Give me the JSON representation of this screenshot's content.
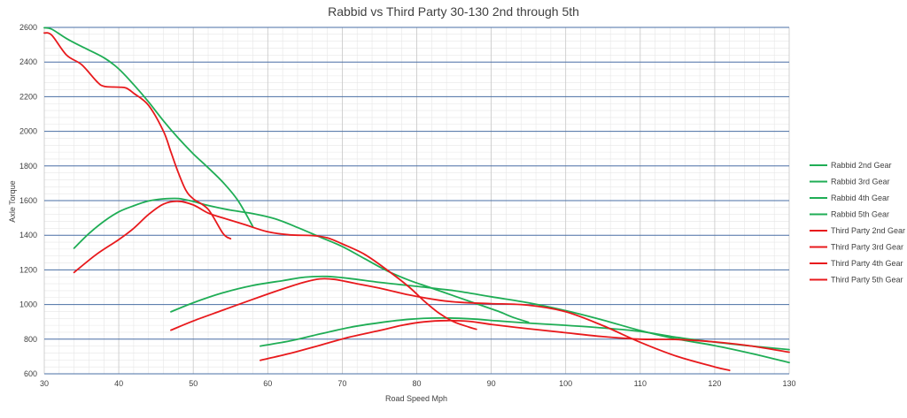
{
  "chart_data": {
    "type": "line",
    "title": "Rabbid vs Third Party 30-130 2nd through 5th",
    "xlabel": "Road Speed Mph",
    "ylabel": "Axle Torque",
    "xlim": [
      30,
      130
    ],
    "ylim": [
      600,
      2600
    ],
    "x_ticks": [
      30,
      40,
      50,
      60,
      70,
      80,
      90,
      100,
      110,
      120,
      130
    ],
    "y_ticks": [
      600,
      800,
      1000,
      1200,
      1400,
      1600,
      1800,
      2000,
      2200,
      2400,
      2600
    ],
    "major_grid": true,
    "minor_grid": true,
    "legend_position": "right",
    "series": [
      {
        "name": "Rabbid 2nd Gear",
        "color": "#1fad55",
        "points": [
          [
            30,
            2598
          ],
          [
            31,
            2590
          ],
          [
            33,
            2535
          ],
          [
            35,
            2490
          ],
          [
            38,
            2425
          ],
          [
            40,
            2360
          ],
          [
            42,
            2270
          ],
          [
            44,
            2170
          ],
          [
            46,
            2060
          ],
          [
            48,
            1960
          ],
          [
            50,
            1870
          ],
          [
            52,
            1790
          ],
          [
            54,
            1705
          ],
          [
            56,
            1600
          ],
          [
            58,
            1450
          ]
        ]
      },
      {
        "name": "Rabbid 3rd Gear",
        "color": "#1fad55",
        "points": [
          [
            34,
            1325
          ],
          [
            36,
            1410
          ],
          [
            38,
            1480
          ],
          [
            40,
            1535
          ],
          [
            42,
            1570
          ],
          [
            44,
            1598
          ],
          [
            46,
            1610
          ],
          [
            48,
            1612
          ],
          [
            50,
            1595
          ],
          [
            52,
            1572
          ],
          [
            55,
            1545
          ],
          [
            58,
            1525
          ],
          [
            61,
            1495
          ],
          [
            64,
            1445
          ],
          [
            67,
            1390
          ],
          [
            70,
            1335
          ],
          [
            73,
            1265
          ],
          [
            76,
            1195
          ],
          [
            79,
            1140
          ],
          [
            82,
            1095
          ],
          [
            85,
            1050
          ],
          [
            88,
            1005
          ],
          [
            91,
            960
          ],
          [
            93,
            925
          ],
          [
            95,
            898
          ]
        ]
      },
      {
        "name": "Rabbid 4th Gear",
        "color": "#1fad55",
        "points": [
          [
            47,
            958
          ],
          [
            50,
            1010
          ],
          [
            54,
            1068
          ],
          [
            58,
            1110
          ],
          [
            62,
            1138
          ],
          [
            65,
            1158
          ],
          [
            68,
            1162
          ],
          [
            71,
            1150
          ],
          [
            75,
            1128
          ],
          [
            80,
            1105
          ],
          [
            85,
            1080
          ],
          [
            90,
            1045
          ],
          [
            95,
            1010
          ],
          [
            100,
            965
          ],
          [
            105,
            910
          ],
          [
            110,
            850
          ],
          [
            115,
            800
          ],
          [
            120,
            763
          ],
          [
            125,
            717
          ],
          [
            130,
            665
          ]
        ]
      },
      {
        "name": "Rabbid 5th Gear",
        "color": "#1fad55",
        "points": [
          [
            59,
            760
          ],
          [
            63,
            790
          ],
          [
            67,
            830
          ],
          [
            71,
            868
          ],
          [
            75,
            895
          ],
          [
            79,
            915
          ],
          [
            83,
            922
          ],
          [
            87,
            918
          ],
          [
            91,
            905
          ],
          [
            95,
            893
          ],
          [
            100,
            880
          ],
          [
            105,
            865
          ],
          [
            110,
            845
          ],
          [
            115,
            810
          ],
          [
            120,
            783
          ],
          [
            125,
            760
          ],
          [
            130,
            740
          ]
        ]
      },
      {
        "name": "Third Party 2nd Gear",
        "color": "#e8191c",
        "points": [
          [
            30,
            2568
          ],
          [
            31,
            2555
          ],
          [
            33,
            2440
          ],
          [
            35,
            2385
          ],
          [
            37,
            2290
          ],
          [
            38,
            2260
          ],
          [
            40,
            2255
          ],
          [
            41,
            2250
          ],
          [
            42,
            2220
          ],
          [
            44,
            2150
          ],
          [
            46,
            2000
          ],
          [
            47,
            1880
          ],
          [
            48,
            1760
          ],
          [
            49,
            1660
          ],
          [
            50,
            1610
          ],
          [
            52,
            1550
          ],
          [
            54,
            1410
          ],
          [
            55,
            1380
          ]
        ]
      },
      {
        "name": "Third Party 3rd Gear",
        "color": "#e8191c",
        "points": [
          [
            34,
            1185
          ],
          [
            37,
            1290
          ],
          [
            40,
            1375
          ],
          [
            42,
            1440
          ],
          [
            44,
            1520
          ],
          [
            46,
            1580
          ],
          [
            48,
            1596
          ],
          [
            50,
            1575
          ],
          [
            52,
            1528
          ],
          [
            54,
            1500
          ],
          [
            57,
            1460
          ],
          [
            60,
            1420
          ],
          [
            63,
            1402
          ],
          [
            66,
            1398
          ],
          [
            68,
            1385
          ],
          [
            70,
            1350
          ],
          [
            73,
            1290
          ],
          [
            76,
            1200
          ],
          [
            79,
            1100
          ],
          [
            81,
            1020
          ],
          [
            83,
            950
          ],
          [
            85,
            900
          ],
          [
            87,
            870
          ],
          [
            88,
            857
          ]
        ]
      },
      {
        "name": "Third Party 4th Gear",
        "color": "#e8191c",
        "points": [
          [
            47,
            852
          ],
          [
            50,
            905
          ],
          [
            54,
            968
          ],
          [
            58,
            1030
          ],
          [
            62,
            1090
          ],
          [
            65,
            1130
          ],
          [
            67,
            1148
          ],
          [
            69,
            1145
          ],
          [
            72,
            1120
          ],
          [
            75,
            1095
          ],
          [
            79,
            1055
          ],
          [
            83,
            1025
          ],
          [
            86,
            1012
          ],
          [
            90,
            1005
          ],
          [
            95,
            996
          ],
          [
            100,
            958
          ],
          [
            105,
            878
          ],
          [
            110,
            782
          ],
          [
            115,
            700
          ],
          [
            120,
            640
          ],
          [
            122,
            620
          ]
        ]
      },
      {
        "name": "Third Party 5th Gear",
        "color": "#e8191c",
        "points": [
          [
            59,
            678
          ],
          [
            63,
            718
          ],
          [
            67,
            765
          ],
          [
            71,
            812
          ],
          [
            75,
            850
          ],
          [
            78,
            880
          ],
          [
            81,
            900
          ],
          [
            84,
            907
          ],
          [
            87,
            903
          ],
          [
            90,
            885
          ],
          [
            95,
            860
          ],
          [
            100,
            837
          ],
          [
            105,
            815
          ],
          [
            110,
            800
          ],
          [
            115,
            798
          ],
          [
            120,
            784
          ],
          [
            125,
            760
          ],
          [
            130,
            725
          ]
        ]
      }
    ]
  }
}
